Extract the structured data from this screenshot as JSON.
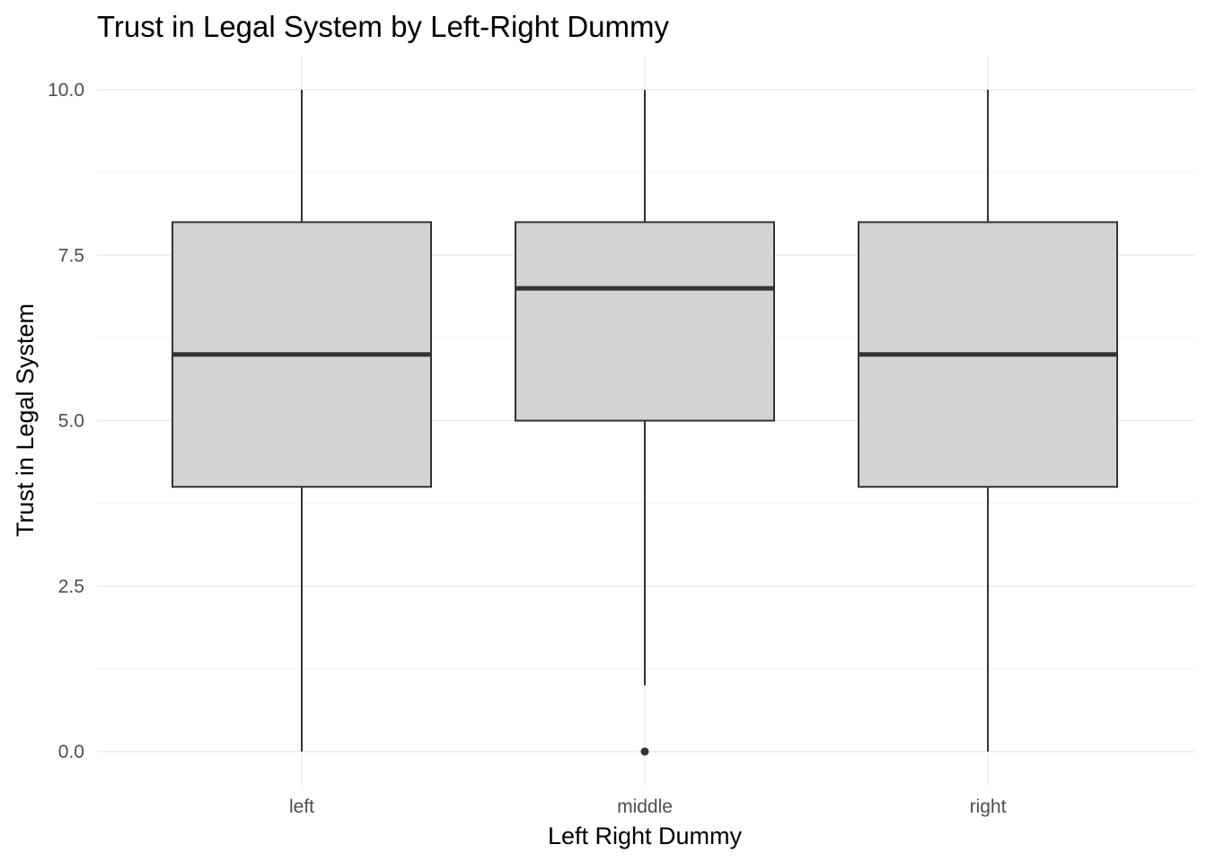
{
  "chart_data": {
    "type": "boxplot",
    "title": "Trust in Legal System by Left-Right Dummy",
    "xlabel": "Left Right Dummy",
    "ylabel": "Trust in Legal System",
    "categories": [
      "left",
      "middle",
      "right"
    ],
    "boxes": [
      {
        "category": "left",
        "whisker_low": 0,
        "q1": 4,
        "median": 6,
        "q3": 8,
        "whisker_high": 10,
        "outliers": []
      },
      {
        "category": "middle",
        "whisker_low": 1,
        "q1": 5,
        "median": 7,
        "q3": 8,
        "whisker_high": 10,
        "outliers": [
          0
        ]
      },
      {
        "category": "right",
        "whisker_low": 0,
        "q1": 4,
        "median": 6,
        "q3": 8,
        "whisker_high": 10,
        "outliers": []
      }
    ],
    "y_ticks": [
      0,
      2.5,
      5,
      7.5,
      10
    ],
    "y_tick_labels": [
      "0.0",
      "2.5",
      "5.0",
      "7.5",
      "10.0"
    ],
    "ylim": [
      -0.5,
      10.5
    ],
    "grid": true,
    "legend": "none",
    "colors": {
      "box_fill": "#d3d3d3",
      "box_line": "#333333",
      "grid": "#ebebeb"
    }
  }
}
